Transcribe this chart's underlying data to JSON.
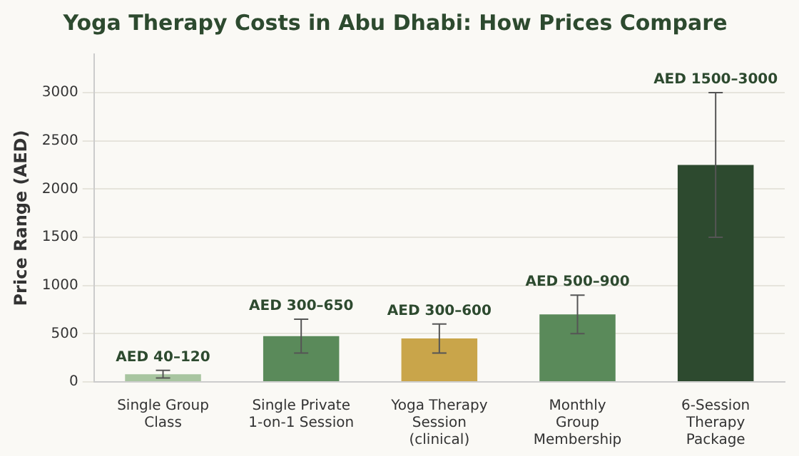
{
  "chart_data": {
    "type": "bar",
    "title": "Yoga Therapy Costs in Abu Dhabi: How Prices Compare",
    "ylabel": "Price Range (AED)",
    "categories": [
      "Single Group\nClass",
      "Single Private\n1-on-1 Session",
      "Yoga Therapy\nSession\n(clinical)",
      "Monthly\nGroup\nMembership",
      "6-Session\nTherapy\nPackage"
    ],
    "values": [
      80,
      475,
      450,
      700,
      2250
    ],
    "colors": [
      "#a8c5a0",
      "#5a8a5a",
      "#c9a54a",
      "#5a8a5a",
      "#2d4a2f"
    ],
    "errors": [
      [
        40,
        120
      ],
      [
        300,
        650
      ],
      [
        300,
        600
      ],
      [
        500,
        900
      ],
      [
        1500,
        3000
      ]
    ],
    "annotations": [
      {
        "text": "AED 40–120",
        "x": "Single Group\nClass",
        "y": 120
      },
      {
        "text": "AED 300–650",
        "x": "Single Private\n1-on-1 Session",
        "y": 650
      },
      {
        "text": "AED 300–600",
        "x": "Yoga Therapy\nSession\n(clinical)",
        "y": 600
      },
      {
        "text": "AED 500–900",
        "x": "Monthly\nGroup\nMembership",
        "y": 900
      },
      {
        "text": "AED 1500–3000",
        "x": "6-Session\nTherapy\nPackage",
        "y": 3000
      }
    ],
    "ylim": [
      0,
      3400
    ],
    "yticks": [
      0,
      500,
      1000,
      1500,
      2000,
      2500,
      3000
    ],
    "grid": "y",
    "legend": false
  }
}
